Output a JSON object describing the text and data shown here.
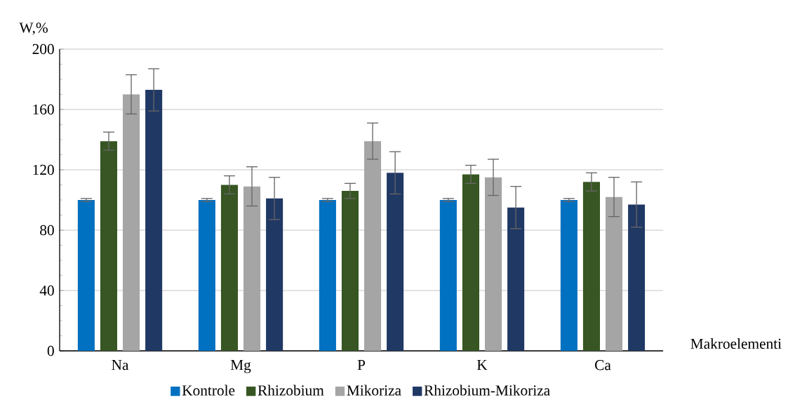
{
  "chart_data": {
    "type": "bar",
    "xlabel": "Makroelementi",
    "ylabel": "W,%",
    "categories": [
      "Na",
      "Mg",
      "P",
      "K",
      "Ca"
    ],
    "series": [
      {
        "name": "Kontrole",
        "color": "#0070c0",
        "values": [
          100,
          100,
          100,
          100,
          100
        ],
        "errors": [
          1,
          1,
          1,
          1,
          1
        ]
      },
      {
        "name": "Rhizobium",
        "color": "#375623",
        "values": [
          139,
          110,
          106,
          117,
          112
        ],
        "errors": [
          6,
          6,
          5,
          6,
          6
        ]
      },
      {
        "name": "Mikoriza",
        "color": "#a5a5a5",
        "values": [
          170,
          109,
          139,
          115,
          102
        ],
        "errors": [
          13,
          13,
          12,
          12,
          13
        ]
      },
      {
        "name": "Rhizobium-Mikoriza",
        "color": "#203864",
        "values": [
          173,
          101,
          118,
          95,
          97
        ],
        "errors": [
          14,
          14,
          14,
          14,
          15
        ]
      }
    ],
    "ylim": [
      0,
      200
    ],
    "yticks": [
      0,
      40,
      80,
      120,
      160,
      200
    ],
    "grid": "y",
    "legend": "bottom"
  }
}
